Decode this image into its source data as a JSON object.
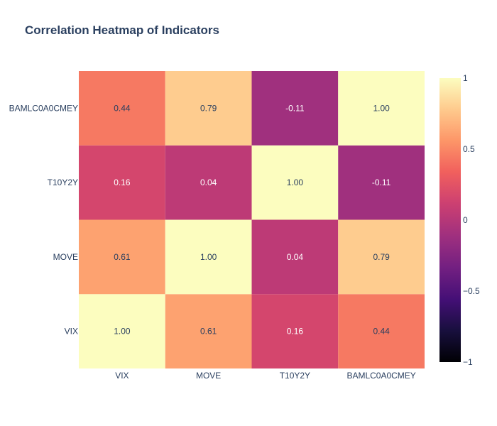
{
  "chart_data": {
    "type": "heatmap",
    "title": "Correlation Heatmap of Indicators",
    "x_categories": [
      "VIX",
      "MOVE",
      "T10Y2Y",
      "BAMLC0A0CMEY"
    ],
    "y_categories": [
      "VIX",
      "MOVE",
      "T10Y2Y",
      "BAMLC0A0CMEY"
    ],
    "z": [
      [
        1.0,
        0.61,
        0.16,
        0.44
      ],
      [
        0.61,
        1.0,
        0.04,
        0.79
      ],
      [
        0.16,
        0.04,
        1.0,
        -0.11
      ],
      [
        0.44,
        0.79,
        -0.11,
        1.0
      ]
    ],
    "cell_labels": [
      [
        "1.00",
        "0.61",
        "0.16",
        "0.44"
      ],
      [
        "0.61",
        "1.00",
        "0.04",
        "0.79"
      ],
      [
        "0.16",
        "0.04",
        "1.00",
        "-0.11"
      ],
      [
        "0.44",
        "0.79",
        "-0.11",
        "1.00"
      ]
    ],
    "zlim": [
      -1,
      1
    ],
    "colorscale": "magma",
    "colorbar_ticks": [
      {
        "value": 1,
        "label": "1"
      },
      {
        "value": 0.5,
        "label": "0.5"
      },
      {
        "value": 0,
        "label": "0"
      },
      {
        "value": -0.5,
        "label": "−0.5"
      },
      {
        "value": -1,
        "label": "−1"
      }
    ],
    "grid": false
  }
}
